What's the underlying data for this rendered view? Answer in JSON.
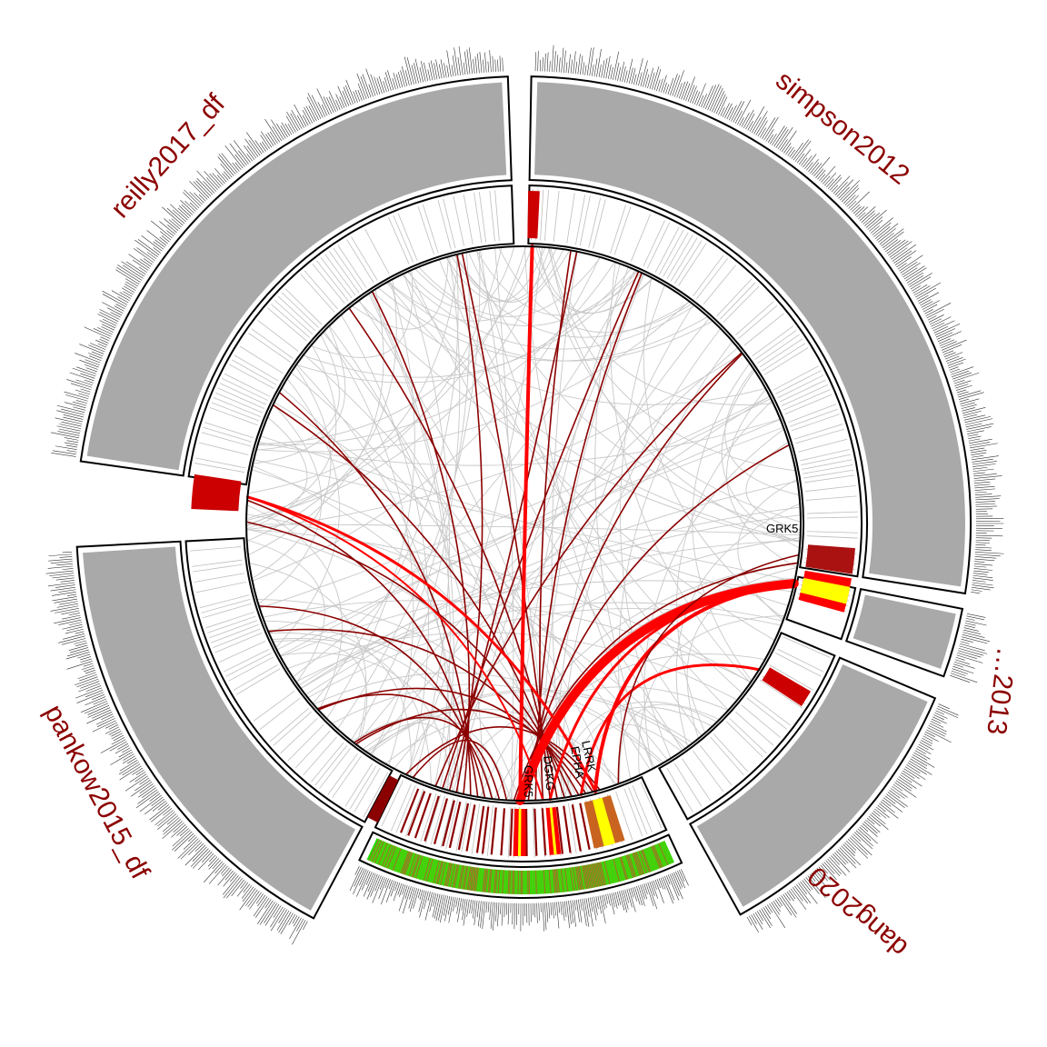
{
  "colors": {
    "label": "#8b0000",
    "outer_sector_fill": "#a9a9a9",
    "heatmap_low": "#22dd00",
    "heatmap_high": "#b36a2a",
    "link_grey": "#c8c8c8",
    "link_red": "#ff0000",
    "link_darkred": "#8b0000",
    "highlight_yellow": "#ffff00",
    "tick_dark": "#333333"
  },
  "sectors": [
    {
      "id": "simpson2012",
      "label": "simpson2012"
    },
    {
      "id": "s2013",
      "label": "…2013"
    },
    {
      "id": "dang2020",
      "label": "dang2020"
    },
    {
      "id": "center",
      "label": ""
    },
    {
      "id": "pankow2015_df",
      "label": "pankow2015_df"
    },
    {
      "id": "reilly2017_df",
      "label": "reilly2017_df"
    }
  ],
  "gene_labels": [
    {
      "id": "grk5-right",
      "text": "GRK5"
    },
    {
      "id": "grk5-bottom",
      "text": "GRK5"
    },
    {
      "id": "dgkg",
      "text": "DGKG"
    },
    {
      "id": "epha",
      "text": "EPHA"
    },
    {
      "id": "lrrk",
      "text": "LRRK"
    }
  ]
}
